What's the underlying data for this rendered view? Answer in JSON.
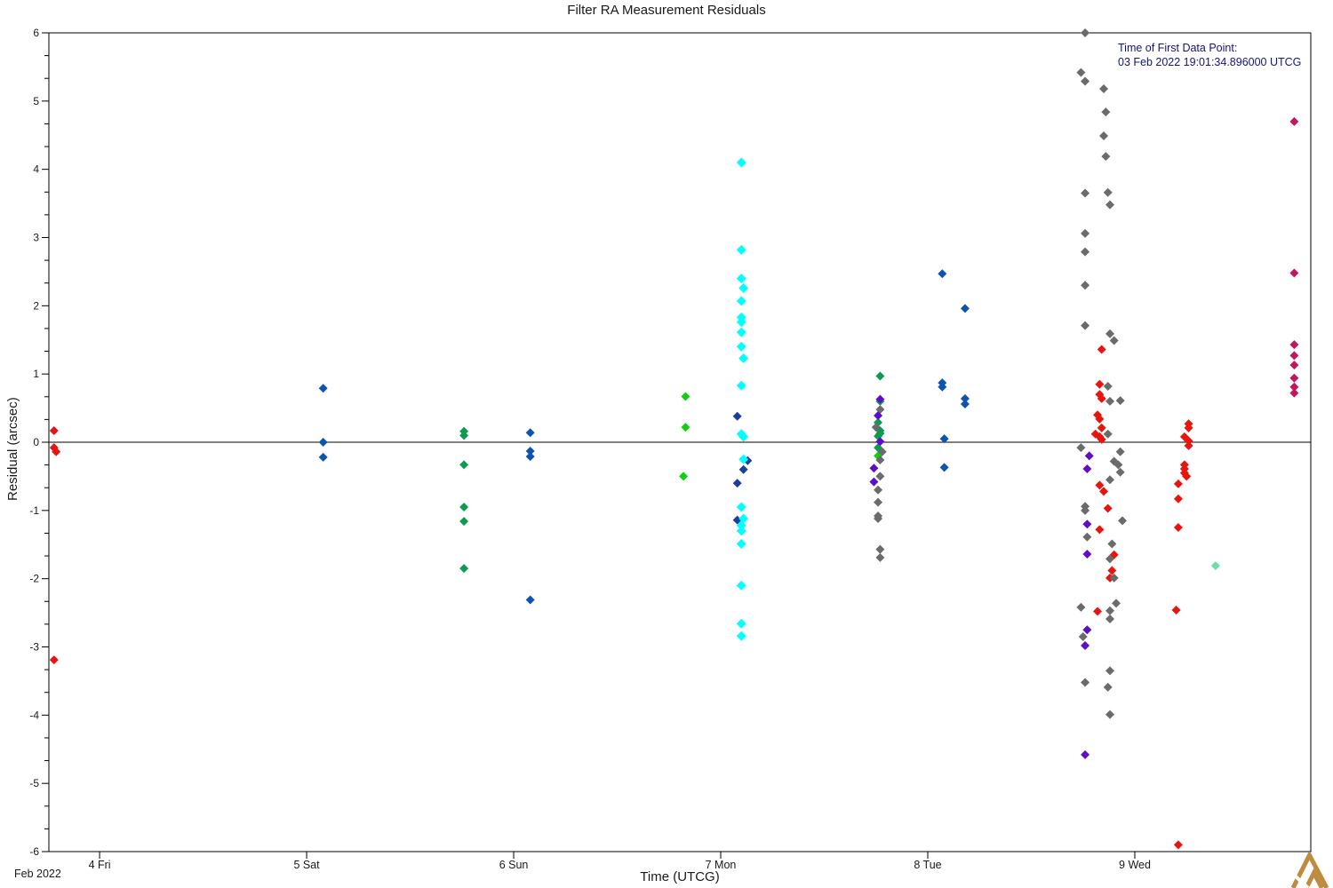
{
  "title": "Filter RA Measurement Residuals",
  "annotation": {
    "line1": "Time of First Data Point:",
    "line2": "03 Feb 2022 19:01:34.896000 UTCG",
    "color": "#14147E"
  },
  "axes": {
    "x_label": "Time (UTCG)",
    "y_label": "Residual (arcsec)",
    "month_label": "Feb 2022",
    "x_tick_labels": [
      "4 Fri",
      "5 Sat",
      "6 Sun",
      "7 Mon",
      "8 Tue",
      "9 Wed"
    ],
    "y_tick_labels": [
      "6",
      "5",
      "4",
      "3",
      "2",
      "1",
      "0",
      "-1",
      "-2",
      "-3",
      "-4",
      "-5",
      "-6"
    ]
  },
  "chart_data": {
    "type": "scatter",
    "title": "Filter RA Measurement Residuals",
    "xlabel": "Time (UTCG)",
    "ylabel": "Residual (arcsec)",
    "x_unit": "day of February 2022 (UTCG)",
    "xlim": [
      3.755,
      9.85
    ],
    "ylim": [
      -6,
      6
    ],
    "x_major_ticks": [
      4,
      5,
      6,
      7,
      8,
      9
    ],
    "x_tick_labels": [
      "4 Fri",
      "5 Sat",
      "6 Sun",
      "7 Mon",
      "8 Tue",
      "9 Wed"
    ],
    "y_major_tick_step": 1,
    "y_minor_divisions": 3,
    "grid": "off",
    "zero_line": true,
    "legend": "none",
    "marker": "diamond",
    "series": [
      {
        "name": "red",
        "color": "#E8140F",
        "size": 5,
        "points": [
          [
            3.78,
            0.17
          ],
          [
            3.78,
            -0.08
          ],
          [
            3.79,
            -0.14
          ],
          [
            3.78,
            -3.19
          ],
          [
            8.84,
            1.36
          ],
          [
            8.83,
            0.85
          ],
          [
            8.83,
            0.7
          ],
          [
            8.84,
            0.64
          ],
          [
            8.82,
            0.4
          ],
          [
            8.83,
            0.34
          ],
          [
            8.84,
            0.21
          ],
          [
            8.81,
            0.12
          ],
          [
            8.83,
            0.08
          ],
          [
            8.84,
            0.04
          ],
          [
            8.83,
            -0.63
          ],
          [
            8.85,
            -0.72
          ],
          [
            8.87,
            -0.97
          ],
          [
            8.83,
            -1.28
          ],
          [
            8.9,
            -1.65
          ],
          [
            8.89,
            -1.88
          ],
          [
            8.88,
            -1.99
          ],
          [
            8.82,
            -2.48
          ],
          [
            9.26,
            0.27
          ],
          [
            9.26,
            0.21
          ],
          [
            9.24,
            0.08
          ],
          [
            9.26,
            0.02
          ],
          [
            9.26,
            -0.05
          ],
          [
            9.24,
            -0.33
          ],
          [
            9.24,
            -0.39
          ],
          [
            9.24,
            -0.45
          ],
          [
            9.25,
            -0.5
          ],
          [
            9.21,
            -0.61
          ],
          [
            9.21,
            -0.83
          ],
          [
            9.21,
            -1.25
          ],
          [
            9.2,
            -2.46
          ],
          [
            9.21,
            -5.9
          ]
        ]
      },
      {
        "name": "royal-blue",
        "color": "#0D54B2",
        "size": 5,
        "points": [
          [
            5.08,
            0.79
          ],
          [
            5.08,
            0.0
          ],
          [
            5.08,
            -0.22
          ],
          [
            6.08,
            0.14
          ],
          [
            6.08,
            -0.13
          ],
          [
            6.08,
            -0.21
          ],
          [
            6.08,
            -2.31
          ],
          [
            8.07,
            2.47
          ],
          [
            8.18,
            1.96
          ],
          [
            8.07,
            0.87
          ],
          [
            8.07,
            0.81
          ],
          [
            8.18,
            0.64
          ],
          [
            8.18,
            0.56
          ],
          [
            8.08,
            0.05
          ],
          [
            8.08,
            -0.37
          ]
        ]
      },
      {
        "name": "navy",
        "color": "#1C3F9E",
        "size": 5,
        "points": [
          [
            7.08,
            0.38
          ],
          [
            7.13,
            -0.27
          ],
          [
            7.11,
            -0.4
          ],
          [
            7.08,
            -0.6
          ],
          [
            7.08,
            -1.14
          ]
        ]
      },
      {
        "name": "sea-green",
        "color": "#0D9B50",
        "size": 5,
        "points": [
          [
            5.76,
            0.16
          ],
          [
            5.76,
            0.1
          ],
          [
            5.76,
            -0.33
          ],
          [
            5.76,
            -0.95
          ],
          [
            5.76,
            -1.16
          ],
          [
            5.76,
            -1.85
          ],
          [
            7.77,
            0.97
          ],
          [
            7.77,
            0.6
          ],
          [
            7.76,
            0.29
          ],
          [
            7.77,
            0.17
          ],
          [
            7.77,
            0.13
          ],
          [
            7.76,
            0.09
          ],
          [
            7.76,
            -0.08
          ]
        ]
      },
      {
        "name": "lime-green",
        "color": "#10CE10",
        "size": 5,
        "points": [
          [
            6.83,
            0.67
          ],
          [
            6.83,
            0.22
          ],
          [
            6.82,
            -0.5
          ],
          [
            7.76,
            -0.2
          ]
        ]
      },
      {
        "name": "cyan",
        "color": "#00FFFF",
        "size": 5.5,
        "points": [
          [
            7.1,
            4.1
          ],
          [
            7.1,
            2.82
          ],
          [
            7.1,
            2.4
          ],
          [
            7.11,
            2.26
          ],
          [
            7.1,
            2.07
          ],
          [
            7.1,
            1.83
          ],
          [
            7.1,
            1.76
          ],
          [
            7.1,
            1.61
          ],
          [
            7.1,
            1.4
          ],
          [
            7.11,
            1.23
          ],
          [
            7.1,
            0.83
          ],
          [
            7.1,
            0.12
          ],
          [
            7.11,
            0.08
          ],
          [
            7.11,
            -0.25
          ],
          [
            7.1,
            -0.95
          ],
          [
            7.11,
            -1.12
          ],
          [
            7.1,
            -1.22
          ],
          [
            7.1,
            -1.3
          ],
          [
            7.1,
            -1.49
          ],
          [
            7.1,
            -2.1
          ],
          [
            7.1,
            -2.66
          ],
          [
            7.1,
            -2.84
          ]
        ]
      },
      {
        "name": "gray",
        "color": "#6B6B6B",
        "size": 5,
        "points": [
          [
            7.77,
            0.48
          ],
          [
            7.75,
            0.22
          ],
          [
            7.78,
            -0.14
          ],
          [
            7.77,
            -0.26
          ],
          [
            7.77,
            -0.5
          ],
          [
            7.76,
            -0.7
          ],
          [
            7.76,
            -0.88
          ],
          [
            7.76,
            -1.08
          ],
          [
            7.76,
            -1.12
          ],
          [
            7.77,
            -1.57
          ],
          [
            7.77,
            -1.69
          ],
          [
            8.76,
            6.0
          ],
          [
            8.74,
            5.42
          ],
          [
            8.76,
            5.29
          ],
          [
            8.85,
            5.18
          ],
          [
            8.86,
            4.84
          ],
          [
            8.85,
            4.49
          ],
          [
            8.86,
            4.19
          ],
          [
            8.76,
            3.65
          ],
          [
            8.87,
            3.66
          ],
          [
            8.88,
            3.48
          ],
          [
            8.76,
            3.06
          ],
          [
            8.76,
            2.79
          ],
          [
            8.76,
            2.3
          ],
          [
            8.76,
            1.71
          ],
          [
            8.88,
            1.59
          ],
          [
            8.9,
            1.49
          ],
          [
            8.87,
            0.82
          ],
          [
            8.88,
            0.6
          ],
          [
            8.93,
            0.61
          ],
          [
            8.87,
            0.12
          ],
          [
            8.74,
            -0.08
          ],
          [
            8.93,
            -0.14
          ],
          [
            8.9,
            -0.28
          ],
          [
            8.92,
            -0.33
          ],
          [
            8.93,
            -0.44
          ],
          [
            8.88,
            -0.55
          ],
          [
            8.76,
            -0.94
          ],
          [
            8.76,
            -1.0
          ],
          [
            8.94,
            -1.15
          ],
          [
            8.77,
            -1.39
          ],
          [
            8.89,
            -1.49
          ],
          [
            8.88,
            -1.71
          ],
          [
            8.9,
            -1.99
          ],
          [
            8.91,
            -2.36
          ],
          [
            8.74,
            -2.42
          ],
          [
            8.88,
            -2.47
          ],
          [
            8.88,
            -2.59
          ],
          [
            8.75,
            -2.85
          ],
          [
            8.88,
            -3.35
          ],
          [
            8.76,
            -3.52
          ],
          [
            8.87,
            -3.59
          ],
          [
            8.88,
            -3.99
          ]
        ]
      },
      {
        "name": "purple",
        "color": "#5D0FC8",
        "size": 5,
        "points": [
          [
            7.77,
            0.63
          ],
          [
            7.76,
            0.39
          ],
          [
            7.77,
            0.01
          ],
          [
            7.74,
            -0.38
          ],
          [
            7.74,
            -0.58
          ],
          [
            8.78,
            -0.2
          ],
          [
            8.77,
            -0.39
          ],
          [
            8.77,
            -1.2
          ],
          [
            8.77,
            -1.64
          ],
          [
            8.77,
            -2.75
          ],
          [
            8.76,
            -2.98
          ],
          [
            8.76,
            -4.58
          ]
        ]
      },
      {
        "name": "violet-red",
        "color": "#C0175F",
        "size": 5,
        "points": [
          [
            9.77,
            4.7
          ],
          [
            9.77,
            2.48
          ],
          [
            9.77,
            1.43
          ],
          [
            9.77,
            1.27
          ],
          [
            9.77,
            1.13
          ],
          [
            9.77,
            0.94
          ],
          [
            9.77,
            0.81
          ],
          [
            9.77,
            0.72
          ]
        ]
      },
      {
        "name": "aquamarine",
        "color": "#69E0A8",
        "size": 5,
        "points": [
          [
            9.39,
            -1.81
          ]
        ]
      }
    ]
  },
  "logo": {
    "name": "agi-logo",
    "color": "#BF8B3E"
  }
}
